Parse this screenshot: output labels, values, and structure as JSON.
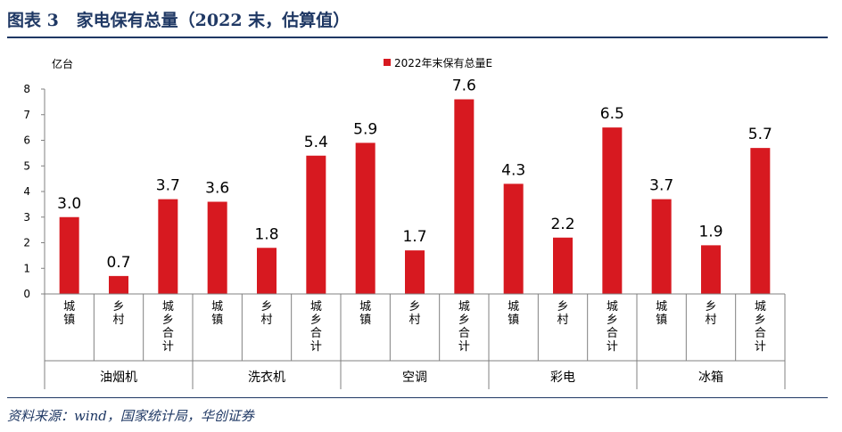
{
  "figure": {
    "title": "图表 3   家电保有总量（2022 末，估算值）",
    "source": "资料来源：wind，国家统计局，华创证券"
  },
  "chart_data": {
    "type": "bar",
    "ylabel": "亿台",
    "ylim": [
      0,
      8
    ],
    "yticks": [
      0,
      1,
      2,
      3,
      4,
      5,
      6,
      7,
      8
    ],
    "grid": false,
    "legend_position": "top",
    "bar_color": "#d71920",
    "series": [
      {
        "name": "2022年末保有总量E",
        "values": [
          3.0,
          0.7,
          3.7,
          3.6,
          1.8,
          5.4,
          5.9,
          1.7,
          7.6,
          4.3,
          2.2,
          6.5,
          3.7,
          1.9,
          5.7
        ],
        "labels": [
          "3.0",
          "0.7",
          "3.7",
          "3.6",
          "1.8",
          "5.4",
          "5.9",
          "1.7",
          "7.6",
          "4.3",
          "2.2",
          "6.5",
          "3.7",
          "1.9",
          "5.7"
        ]
      }
    ],
    "categories": [
      "城镇",
      "乡村",
      "城乡合计",
      "城镇",
      "乡村",
      "城乡合计",
      "城镇",
      "乡村",
      "城乡合计",
      "城镇",
      "乡村",
      "城乡合计",
      "城镇",
      "乡村",
      "城乡合计"
    ],
    "groups": [
      "油烟机",
      "洗衣机",
      "空调",
      "彩电",
      "冰箱"
    ]
  }
}
